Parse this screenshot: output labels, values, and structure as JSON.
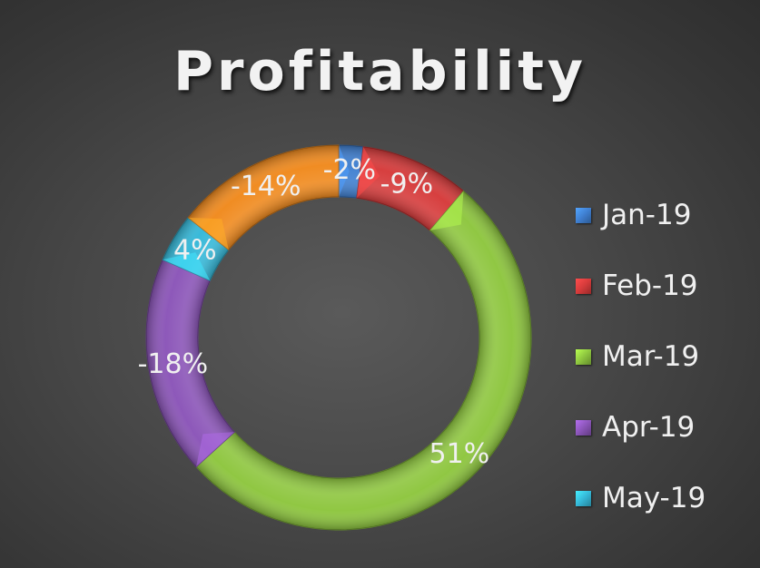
{
  "chart_data": {
    "type": "pie",
    "style": "donut",
    "title": "Profitability",
    "categories": [
      "Jan-19",
      "Feb-19",
      "Mar-19",
      "Apr-19",
      "May-19",
      ""
    ],
    "values": [
      -2,
      -9,
      51,
      -18,
      4,
      -14
    ],
    "data_labels": [
      "-2%",
      "-9%",
      "51%",
      "-18%",
      "4%",
      "-14%"
    ],
    "legend": {
      "placement": "right",
      "entries": [
        "Jan-19",
        "Feb-19",
        "Mar-19",
        "Apr-19",
        "May-19"
      ]
    },
    "colors": [
      "#3f7fd0",
      "#d63b3b",
      "#8ec63f",
      "#8b55b8",
      "#35b8d8",
      "#f08a1e"
    ]
  }
}
